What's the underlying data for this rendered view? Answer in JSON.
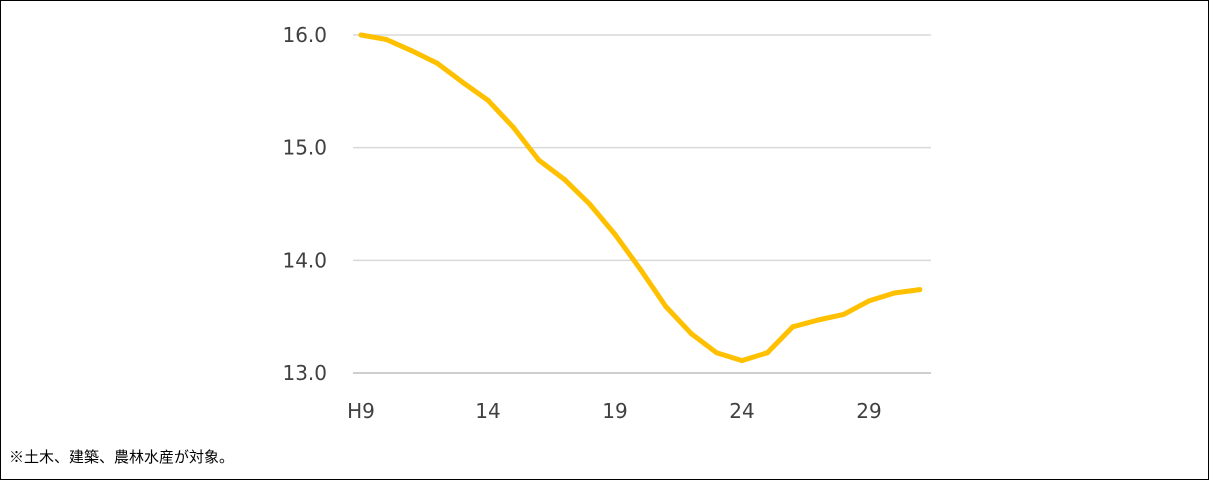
{
  "chart_data": {
    "type": "line",
    "title": "",
    "xlabel": "",
    "ylabel": "",
    "x_tick_labels": [
      "H9",
      "14",
      "19",
      "24",
      "29"
    ],
    "y_tick_labels": [
      "16.0",
      "15.0",
      "14.0",
      "13.0"
    ],
    "ylim": [
      13.0,
      16.0
    ],
    "grid": true,
    "legend": "none",
    "series": [
      {
        "color": "#FFC000",
        "x": [
          9,
          10,
          11,
          12,
          13,
          14,
          15,
          16,
          17,
          18,
          19,
          20,
          21,
          22,
          23,
          24,
          25,
          26,
          27,
          28,
          29,
          30,
          31
        ],
        "values": [
          16.0,
          15.96,
          15.86,
          15.75,
          15.58,
          15.42,
          15.18,
          14.89,
          14.72,
          14.5,
          14.23,
          13.92,
          13.59,
          13.35,
          13.18,
          13.11,
          13.18,
          13.41,
          13.47,
          13.52,
          13.64,
          13.71,
          13.74
        ]
      }
    ]
  },
  "footnote": "※土木、建築、農林水産が対象。",
  "colors": {
    "line": "#FFC000",
    "grid": "#D9D9D9",
    "axis": "#BFBFBF",
    "text": "#404040"
  }
}
